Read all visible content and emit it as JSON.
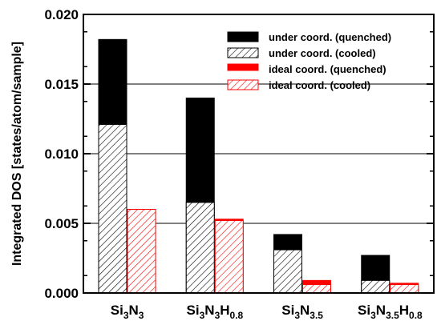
{
  "chart_data": {
    "type": "bar",
    "ylabel": "Integrated DOS [states/atom/sample]",
    "ylim": [
      0,
      0.02
    ],
    "yticks": [
      "0.000",
      "0.005",
      "0.010",
      "0.015",
      "0.020"
    ],
    "grid": "horizontal",
    "legend_position": "top-right",
    "categories": [
      {
        "label": [
          {
            "t": "Si"
          },
          {
            "t": "3",
            "sub": true
          },
          {
            "t": "N"
          },
          {
            "t": "3",
            "sub": true
          }
        ]
      },
      {
        "label": [
          {
            "t": "Si"
          },
          {
            "t": "3",
            "sub": true
          },
          {
            "t": "N"
          },
          {
            "t": "3",
            "sub": true
          },
          {
            "t": "H"
          },
          {
            "t": "0.8",
            "sub": true
          }
        ]
      },
      {
        "label": [
          {
            "t": "Si"
          },
          {
            "t": "3",
            "sub": true
          },
          {
            "t": "N"
          },
          {
            "t": "3.5",
            "sub": true
          }
        ]
      },
      {
        "label": [
          {
            "t": "Si"
          },
          {
            "t": "3",
            "sub": true
          },
          {
            "t": "N"
          },
          {
            "t": "3.5",
            "sub": true
          },
          {
            "t": "H"
          },
          {
            "t": "0.8",
            "sub": true
          }
        ]
      }
    ],
    "series": [
      {
        "name": "under coord. (quenched)",
        "color": "#000000",
        "style": "solid",
        "group": "under",
        "values": [
          0.0182,
          0.014,
          0.0042,
          0.0027
        ]
      },
      {
        "name": "under coord. (cooled)",
        "color": "#000000",
        "style": "hatched",
        "group": "under",
        "values": [
          0.0121,
          0.0065,
          0.0031,
          0.0009
        ]
      },
      {
        "name": "ideal coord. (quenched)",
        "color": "#ff0000",
        "style": "solid",
        "group": "ideal",
        "values": [
          0.006,
          0.0053,
          0.0009,
          0.0007
        ]
      },
      {
        "name": "ideal coord. (cooled)",
        "color": "#ff0000",
        "style": "hatched",
        "group": "ideal",
        "values": [
          0.006,
          0.0052,
          0.0006,
          0.0006
        ]
      }
    ]
  }
}
